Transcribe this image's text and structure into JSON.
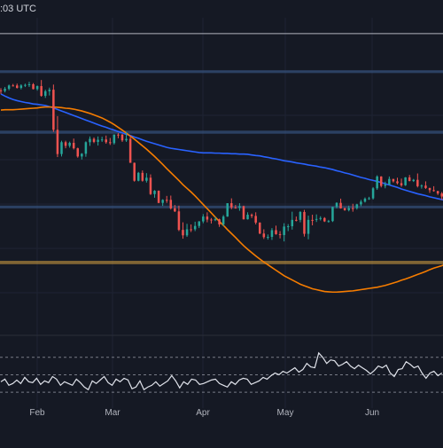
{
  "header": {
    "timestamp": ":03 UTC"
  },
  "colors": {
    "background": "#151924",
    "grid": "#1f2433",
    "bull": "#26a69a",
    "bear": "#ef5350",
    "ma_fast": "#2962ff",
    "ma_slow": "#f57c00",
    "support_zone": "#d9a441",
    "resistance_zone": "#3a5a8c",
    "rsi_line": "#e0e3eb"
  },
  "chart_data": [
    {
      "type": "candlestick",
      "title": "",
      "x_tick_labels": [
        "Feb",
        "Mar",
        "Apr",
        "May",
        "Jun"
      ],
      "grid": true,
      "horizontal_line": 2.3,
      "zones": [
        {
          "name": "",
          "kind": "resistance",
          "from": 14.4,
          "to": 15.3
        },
        {
          "name": "",
          "kind": "resistance",
          "from": 34.3,
          "to": 35.3
        },
        {
          "name": "",
          "kind": "resistance",
          "from": 59.0,
          "to": 59.9
        },
        {
          "name": "",
          "kind": "support",
          "from": 77.2,
          "to": 78.3
        }
      ],
      "ylim": [
        0,
        100
      ],
      "candles": [
        [
          21.0,
          22.2,
          20.3,
          21.2
        ],
        [
          21.2,
          21.7,
          19.9,
          20.5
        ],
        [
          20.5,
          21.0,
          19.1,
          19.4
        ],
        [
          19.4,
          19.7,
          18.9,
          19.4
        ],
        [
          19.4,
          20.4,
          18.8,
          20.2
        ],
        [
          20.2,
          20.7,
          19.0,
          19.4
        ],
        [
          19.4,
          19.9,
          18.8,
          19.2
        ],
        [
          19.2,
          19.9,
          18.2,
          19.0
        ],
        [
          19.0,
          20.7,
          18.6,
          20.6
        ],
        [
          20.6,
          21.1,
          19.4,
          19.6
        ],
        [
          19.6,
          23.1,
          17.6,
          22.8
        ],
        [
          22.8,
          23.5,
          20.8,
          21.3
        ],
        [
          21.3,
          22.7,
          20.1,
          20.8
        ],
        [
          20.8,
          34.7,
          19.1,
          34.0
        ],
        [
          34.0,
          43.0,
          29.5,
          42.0
        ],
        [
          42.0,
          42.8,
          37.6,
          38.1
        ],
        [
          38.1,
          40.1,
          37.6,
          39.3
        ],
        [
          39.3,
          39.9,
          37.9,
          38.3
        ],
        [
          38.3,
          40.5,
          36.9,
          40.1
        ],
        [
          40.1,
          43.2,
          39.9,
          42.8
        ],
        [
          42.8,
          43.8,
          41.7,
          41.9
        ],
        [
          41.9,
          42.9,
          37.8,
          38.1
        ],
        [
          38.1,
          39.3,
          36.2,
          37.0
        ],
        [
          37.0,
          38.4,
          36.5,
          38.0
        ],
        [
          38.0,
          39.2,
          36.2,
          37.3
        ],
        [
          37.3,
          38.0,
          36.3,
          37.2
        ],
        [
          37.2,
          38.6,
          35.9,
          38.1
        ],
        [
          38.1,
          39.0,
          36.7,
          38.4
        ],
        [
          38.4,
          38.9,
          35.5,
          35.6
        ],
        [
          35.6,
          36.8,
          35.1,
          35.6
        ],
        [
          35.6,
          38.0,
          35.4,
          37.5
        ],
        [
          37.5,
          38.0,
          34.7,
          37.0
        ],
        [
          37.0,
          44.9,
          35.9,
          44.9
        ],
        [
          44.9,
          51.1,
          44.8,
          50.8
        ],
        [
          50.8,
          51.0,
          47.9,
          48.2
        ],
        [
          48.2,
          51.1,
          47.4,
          50.8
        ],
        [
          50.8,
          51.4,
          48.3,
          49.8
        ],
        [
          49.8,
          55.5,
          48.7,
          55.2
        ],
        [
          55.2,
          56.4,
          53.9,
          54.1
        ],
        [
          54.1,
          58.2,
          54.0,
          58.1
        ],
        [
          58.1,
          59.1,
          56.9,
          57.1
        ],
        [
          57.1,
          58.1,
          55.8,
          57.1
        ],
        [
          57.1,
          60.3,
          55.7,
          59.9
        ],
        [
          59.9,
          61.1,
          58.8,
          60.9
        ],
        [
          60.9,
          67.4,
          59.0,
          67.0
        ],
        [
          67.0,
          69.9,
          64.5,
          68.8
        ],
        [
          68.8,
          69.3,
          65.0,
          66.8
        ],
        [
          66.8,
          67.7,
          65.2,
          66.8
        ],
        [
          66.8,
          67.4,
          64.3,
          65.7
        ],
        [
          65.7,
          66.4,
          64.1,
          64.2
        ],
        [
          64.2,
          64.8,
          61.8,
          62.6
        ],
        [
          62.6,
          64.5,
          61.2,
          63.6
        ],
        [
          63.6,
          64.9,
          63.1,
          63.6
        ],
        [
          63.6,
          64.1,
          62.7,
          63.5
        ],
        [
          63.5,
          66.0,
          63.3,
          65.2
        ],
        [
          65.2,
          65.8,
          62.1,
          62.6
        ],
        [
          62.6,
          62.7,
          58.2,
          58.2
        ],
        [
          58.2,
          60.2,
          56.6,
          59.6
        ],
        [
          59.6,
          60.0,
          58.8,
          59.7
        ],
        [
          59.7,
          60.7,
          58.2,
          59.2
        ],
        [
          59.2,
          63.6,
          59.0,
          63.5
        ],
        [
          63.5,
          63.6,
          61.2,
          62.0
        ],
        [
          62.0,
          63.1,
          61.6,
          62.4
        ],
        [
          62.4,
          65.2,
          61.2,
          64.6
        ],
        [
          64.6,
          68.4,
          64.5,
          68.2
        ],
        [
          68.2,
          70.0,
          66.8,
          69.4
        ],
        [
          69.4,
          70.2,
          68.5,
          69.3
        ],
        [
          69.3,
          70.3,
          66.4,
          67.1
        ],
        [
          67.1,
          68.6,
          65.6,
          68.4
        ],
        [
          68.4,
          69.8,
          67.4,
          68.7
        ],
        [
          68.7,
          70.8,
          64.8,
          65.9
        ],
        [
          65.9,
          67.4,
          65.1,
          65.8
        ],
        [
          65.8,
          66.9,
          61.0,
          63.7
        ],
        [
          63.7,
          64.2,
          62.6,
          63.7
        ],
        [
          63.7,
          64.5,
          60.8,
          61.1
        ],
        [
          61.1,
          69.2,
          60.4,
          68.3
        ],
        [
          68.3,
          70.1,
          62.3,
          63.7
        ],
        [
          63.7,
          65.5,
          62.0,
          63.7
        ],
        [
          63.7,
          64.4,
          61.9,
          63.4
        ],
        [
          63.4,
          63.9,
          62.5,
          63.1
        ],
        [
          63.1,
          64.4,
          62.8,
          64.2
        ],
        [
          64.2,
          64.6,
          63.7,
          64.1
        ],
        [
          64.1,
          64.4,
          59.4,
          59.4
        ],
        [
          59.4,
          59.9,
          57.9,
          58.1
        ],
        [
          58.1,
          60.0,
          56.7,
          59.9
        ],
        [
          59.9,
          60.7,
          59.6,
          60.5
        ],
        [
          60.5,
          60.9,
          59.0,
          59.8
        ],
        [
          59.8,
          61.0,
          58.4,
          59.8
        ],
        [
          59.8,
          60.3,
          58.4,
          58.6
        ],
        [
          58.6,
          59.2,
          57.1,
          57.7
        ],
        [
          57.7,
          58.0,
          56.3,
          56.7
        ],
        [
          56.7,
          57.1,
          56.1,
          56.6
        ],
        [
          56.6,
          57.0,
          52.9,
          53.3
        ],
        [
          53.3,
          53.8,
          49.0,
          49.4
        ],
        [
          49.4,
          53.0,
          49.3,
          52.5
        ],
        [
          52.5,
          53.3,
          51.1,
          52.1
        ],
        [
          52.1,
          52.2,
          49.4,
          50.2
        ],
        [
          50.2,
          51.4,
          50.2,
          51.0
        ],
        [
          51.0,
          52.0,
          49.8,
          51.6
        ],
        [
          51.6,
          52.8,
          50.1,
          52.3
        ],
        [
          52.3,
          52.5,
          49.6,
          49.7
        ],
        [
          49.7,
          51.0,
          48.9,
          50.9
        ],
        [
          50.9,
          51.2,
          50.2,
          50.5
        ],
        [
          50.5,
          53.0,
          48.4,
          52.6
        ],
        [
          52.6,
          53.4,
          52.0,
          52.4
        ],
        [
          52.4,
          53.5,
          51.0,
          53.2
        ],
        [
          53.2,
          54.8,
          53.1,
          53.9
        ],
        [
          53.9,
          54.4,
          52.6,
          54.2
        ],
        [
          54.2,
          55.5,
          54.1,
          55.0
        ],
        [
          55.0,
          57.1,
          54.5,
          56.0
        ]
      ],
      "series": [
        {
          "name": "",
          "color_key": "ma_fast",
          "values": [
            22.2,
            22.9,
            23.5,
            24.0,
            24.4,
            24.7,
            25.0,
            25.2,
            25.5,
            25.6,
            25.8,
            26.0,
            26.4,
            26.8,
            27.3,
            27.8,
            28.3,
            28.8,
            29.3,
            29.8,
            30.3,
            30.8,
            31.3,
            31.8,
            32.3,
            32.8,
            33.2,
            33.7,
            34.1,
            34.6,
            35.0,
            35.5,
            35.9,
            36.4,
            36.8,
            37.3,
            37.8,
            38.2,
            38.6,
            39.0,
            39.4,
            39.8,
            40.1,
            40.3,
            40.5,
            40.7,
            40.9,
            41.1,
            41.3,
            41.5,
            41.6,
            41.6,
            41.6,
            41.7,
            41.7,
            41.8,
            41.8,
            41.9,
            41.9,
            42.0,
            42.0,
            42.1,
            42.3,
            42.5,
            42.6,
            42.9,
            43.1,
            43.4,
            43.6,
            43.9,
            44.2,
            44.4,
            44.6,
            44.9,
            45.1,
            45.3,
            45.6,
            45.8,
            46.0,
            46.3,
            46.5,
            46.8,
            47.1,
            47.5,
            47.8,
            48.2,
            48.5,
            48.9,
            49.3,
            49.7,
            50.0,
            50.4,
            50.7,
            51.0,
            51.4,
            51.8,
            52.2,
            52.6,
            53.0,
            53.5,
            53.9,
            54.3,
            54.7,
            55.1,
            55.4,
            55.7,
            56.1,
            56.4,
            56.7,
            57.0,
            57.3,
            57.6
          ]
        },
        {
          "name": "",
          "color_key": "ma_slow",
          "values": [
            27.5,
            27.4,
            27.4,
            27.4,
            27.3,
            27.2,
            27.1,
            27.0,
            26.9,
            26.8,
            26.6,
            26.5,
            26.5,
            26.5,
            26.6,
            26.7,
            26.9,
            27.0,
            27.2,
            27.5,
            27.8,
            28.2,
            28.6,
            29.1,
            29.6,
            30.1,
            30.8,
            31.5,
            32.3,
            33.2,
            34.1,
            35.1,
            36.1,
            37.1,
            38.2,
            39.3,
            40.4,
            41.6,
            42.8,
            44.1,
            45.4,
            46.8,
            48.1,
            49.4,
            50.7,
            52.1,
            53.3,
            54.5,
            55.8,
            57.2,
            58.6,
            60.0,
            61.4,
            62.8,
            64.2,
            65.5,
            66.9,
            68.2,
            69.5,
            70.9,
            72.2,
            73.4,
            74.5,
            75.6,
            76.6,
            77.6,
            78.5,
            79.4,
            80.3,
            81.2,
            82.1,
            82.8,
            83.5,
            84.2,
            84.9,
            85.4,
            85.9,
            86.4,
            86.7,
            87.0,
            87.3,
            87.4,
            87.5,
            87.5,
            87.4,
            87.3,
            87.2,
            87.1,
            86.9,
            86.7,
            86.5,
            86.3,
            86.1,
            85.9,
            85.6,
            85.3,
            84.9,
            84.5,
            84.1,
            83.6,
            83.2,
            82.7,
            82.2,
            81.7,
            81.2,
            80.7,
            80.1,
            79.6,
            79.2,
            78.8,
            78.3,
            77.8
          ]
        }
      ]
    },
    {
      "type": "line",
      "title": "",
      "x_tick_labels": [
        "Feb",
        "Mar",
        "Apr",
        "May",
        "Jun"
      ],
      "reference_lines": [
        30,
        50,
        70
      ],
      "ylim": [
        20,
        85
      ],
      "series": [
        {
          "name": "",
          "values": [
            42,
            45,
            38,
            40,
            44,
            40,
            47,
            42,
            41,
            46,
            39,
            43,
            41,
            48,
            45,
            38,
            42,
            40,
            38,
            45,
            41,
            36,
            33,
            43,
            40,
            44,
            48,
            41,
            38,
            45,
            42,
            46,
            44,
            34,
            36,
            43,
            33,
            36,
            38,
            42,
            37,
            40,
            43,
            49,
            43,
            35,
            42,
            39,
            45,
            44,
            39,
            40,
            42,
            44,
            45,
            40,
            38,
            36,
            42,
            39,
            44,
            46,
            45,
            39,
            41,
            43,
            47,
            45,
            49,
            52,
            50,
            54,
            52,
            55,
            58,
            53,
            56,
            63,
            59,
            58,
            75,
            70,
            63,
            67,
            66,
            60,
            62,
            65,
            60,
            57,
            61,
            58,
            55,
            51,
            55,
            60,
            58,
            61,
            52,
            48,
            56,
            57,
            65,
            62,
            58,
            60,
            52,
            46,
            52,
            54,
            49,
            52
          ]
        }
      ]
    }
  ]
}
